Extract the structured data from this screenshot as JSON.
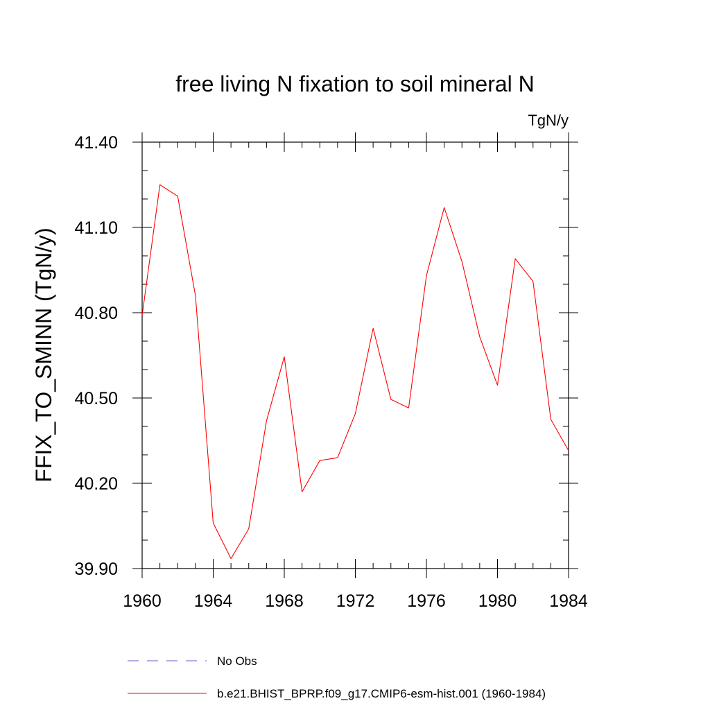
{
  "chart_data": {
    "type": "line",
    "title": "free living N fixation to soil mineral N",
    "units_label": "TgN/y",
    "xlabel": "",
    "ylabel": "FFIX_TO_SMINN  (TgN/y)",
    "xlim": [
      1960,
      1984
    ],
    "ylim": [
      39.9,
      41.4
    ],
    "x_ticks": [
      1960,
      1964,
      1968,
      1972,
      1976,
      1980,
      1984
    ],
    "x_tick_labels": [
      "1960",
      "1964",
      "1968",
      "1972",
      "1976",
      "1980",
      "1984"
    ],
    "y_ticks": [
      39.9,
      40.2,
      40.5,
      40.8,
      41.1,
      41.4
    ],
    "y_tick_labels": [
      "39.90",
      "40.20",
      "40.50",
      "40.80",
      "41.10",
      "41.40"
    ],
    "x_minor_step": 1,
    "y_minor_step": 0.1,
    "grid": false,
    "series": [
      {
        "name": "b.e21.BHIST_BPRP.f09_g17.CMIP6-esm-hist.001 (1960-1984)",
        "color": "#ff0000",
        "dash": "solid",
        "x": [
          1960,
          1961,
          1962,
          1963,
          1964,
          1965,
          1966,
          1967,
          1968,
          1969,
          1970,
          1971,
          1972,
          1973,
          1974,
          1975,
          1976,
          1977,
          1978,
          1979,
          1980,
          1981,
          1982,
          1983,
          1984
        ],
        "values": [
          40.79,
          41.25,
          41.21,
          40.86,
          40.06,
          39.935,
          40.04,
          40.42,
          40.645,
          40.17,
          40.28,
          40.29,
          40.445,
          40.745,
          40.495,
          40.465,
          40.93,
          41.17,
          40.98,
          40.715,
          40.545,
          40.99,
          40.91,
          40.425,
          40.315
        ]
      }
    ],
    "legend": [
      {
        "label": "No Obs",
        "color": "#6a5acd",
        "dash": "dashed"
      },
      {
        "label": "b.e21.BHIST_BPRP.f09_g17.CMIP6-esm-hist.001 (1960-1984)",
        "color": "#ff0000",
        "dash": "solid"
      }
    ],
    "legend_position": "bottom"
  }
}
